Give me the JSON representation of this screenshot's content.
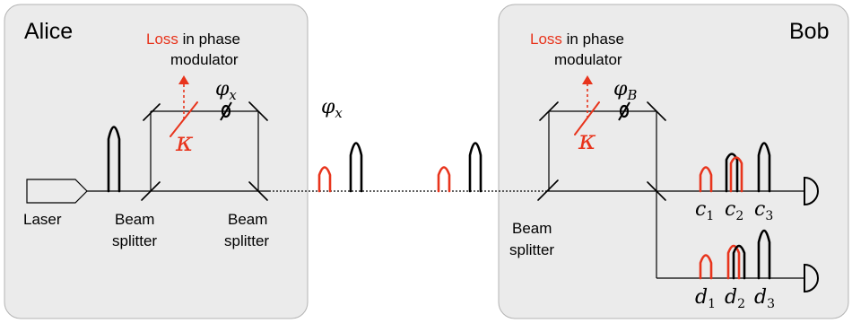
{
  "alice": {
    "title": "Alice",
    "loss_word": "Loss",
    "loss_rest": " in phase",
    "loss_line2": "modulator",
    "phase_label": "φ",
    "phase_sub": "x",
    "kappa": "κ",
    "laser_label": "Laser",
    "bs1_line1": "Beam",
    "bs1_line2": "splitter",
    "bs2_line1": "Beam",
    "bs2_line2": "splitter"
  },
  "channel": {
    "phase_label": "φ",
    "phase_sub": "x"
  },
  "bob": {
    "title": "Bob",
    "loss_word": "Loss",
    "loss_rest": " in phase",
    "loss_line2": "modulator",
    "phase_label": "φ",
    "phase_sub": "B",
    "kappa": "κ",
    "bs_line1": "Beam",
    "bs_line2": "splitter",
    "c_labels": [
      {
        "base": "c",
        "sub": "1"
      },
      {
        "base": "c",
        "sub": "2"
      },
      {
        "base": "c",
        "sub": "3"
      }
    ],
    "d_labels": [
      {
        "base": "d",
        "sub": "1"
      },
      {
        "base": "d",
        "sub": "2"
      },
      {
        "base": "d",
        "sub": "3"
      }
    ]
  },
  "colors": {
    "loss": "#e8341c",
    "panel": "#ebebeb",
    "line": "#000000"
  }
}
